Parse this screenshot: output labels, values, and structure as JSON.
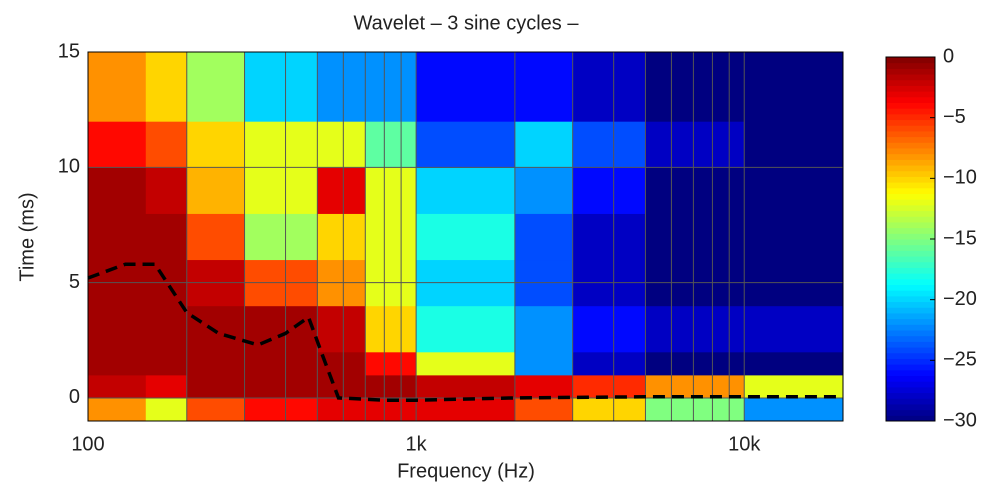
{
  "chart_data": {
    "type": "contour",
    "title": "Wavelet – 3 sine cycles –",
    "xlabel": "Frequency (Hz)",
    "ylabel": "Time (ms)",
    "xscale": "log",
    "xlim": [
      100,
      20000
    ],
    "ylim": [
      -1,
      15
    ],
    "xticks": [
      100,
      {
        "value": 1000,
        "label": "1k"
      },
      {
        "value": 10000,
        "label": "10k"
      }
    ],
    "yticks": [
      0,
      5,
      10,
      15
    ],
    "x_minor_grid": [
      200,
      300,
      400,
      500,
      600,
      700,
      800,
      900,
      2000,
      3000,
      4000,
      5000,
      6000,
      7000,
      8000,
      9000,
      20000
    ],
    "grid": true,
    "colormap": "jet",
    "clim": [
      -30,
      0
    ],
    "cticks": [
      {
        "value": -30,
        "label": "−30"
      },
      {
        "value": -25,
        "label": "−25"
      },
      {
        "value": -20,
        "label": "−20"
      },
      {
        "value": -15,
        "label": "−15"
      },
      {
        "value": -10,
        "label": "−10"
      },
      {
        "value": -5,
        "label": "−5"
      },
      0
    ],
    "x_bins": [
      100,
      150,
      200,
      300,
      500,
      700,
      1000,
      2000,
      3000,
      5000,
      10000,
      20000
    ],
    "y_bins": [
      -1,
      0,
      1,
      2,
      4,
      6,
      8,
      10,
      12,
      15
    ],
    "z": [
      [
        -8,
        -12,
        -6,
        -4,
        -3,
        -3,
        -3,
        -6,
        -10,
        -15,
        -22
      ],
      [
        -2,
        -3,
        -1,
        -1,
        -1,
        -1,
        -2,
        -3,
        -5,
        -8,
        -12
      ],
      [
        -1,
        -1,
        -1,
        -1,
        -1,
        -4,
        -12,
        -22,
        -28,
        -30,
        -30
      ],
      [
        -1,
        -1,
        -1,
        -1,
        -2,
        -10,
        -18,
        -22,
        -26,
        -28,
        -28
      ],
      [
        -1,
        -1,
        -2,
        -6,
        -8,
        -12,
        -20,
        -24,
        -28,
        -30,
        -30
      ],
      [
        -1,
        -1,
        -6,
        -14,
        -10,
        -12,
        -18,
        -24,
        -28,
        -30,
        -30
      ],
      [
        -1,
        -2,
        -9,
        -12,
        -3,
        -12,
        -20,
        -22,
        -26,
        -30,
        -30
      ],
      [
        -4,
        -6,
        -10,
        -12,
        -12,
        -16,
        -24,
        -20,
        -24,
        -28,
        -30
      ],
      [
        -8,
        -10,
        -14,
        -20,
        -22,
        -22,
        -26,
        -26,
        -28,
        -30,
        -30
      ]
    ],
    "line": {
      "color": "#000000",
      "x": [
        100,
        130,
        160,
        200,
        250,
        330,
        400,
        470,
        520,
        580,
        800,
        1000,
        2000,
        5000,
        10000,
        20000
      ],
      "y": [
        5.2,
        5.8,
        5.8,
        3.7,
        2.8,
        2.3,
        2.8,
        3.5,
        1.8,
        0,
        -0.1,
        -0.1,
        0,
        0.05,
        0.05,
        0.05
      ]
    }
  }
}
